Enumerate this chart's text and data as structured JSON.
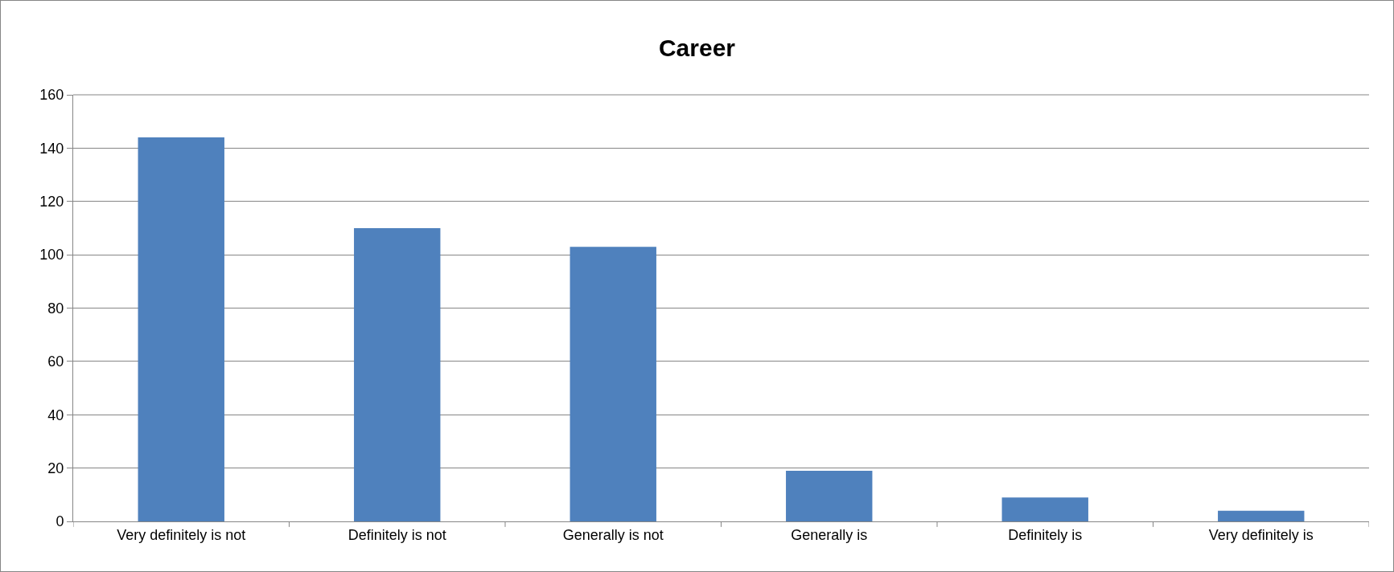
{
  "chart_data": {
    "type": "bar",
    "title": "Career",
    "categories": [
      "Very definitely is not",
      "Definitely is not",
      "Generally is not",
      "Generally is",
      "Definitely is",
      "Very definitely is"
    ],
    "values": [
      144,
      110,
      103,
      19,
      9,
      4
    ],
    "color": "#4f81bd",
    "ylim": [
      0,
      160
    ],
    "yticks": [
      0,
      20,
      40,
      60,
      80,
      100,
      120,
      140,
      160
    ],
    "grid": "y"
  }
}
